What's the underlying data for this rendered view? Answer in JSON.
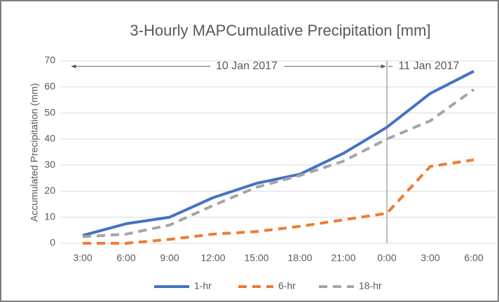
{
  "chart_data": {
    "type": "line",
    "title": "3-Hourly MAPCumulative Precipitation [mm]",
    "y_label": "Accumulated Precipitation (mm)",
    "categories": [
      "3:00",
      "6:00",
      "9:00",
      "12:00",
      "15:00",
      "18:00",
      "21:00",
      "0:00",
      "3:00",
      "6:00"
    ],
    "series": [
      {
        "name": "1-hr",
        "color": "#4472c4",
        "dashed": false,
        "values": [
          3,
          7.5,
          10,
          17.5,
          23,
          26.5,
          34.5,
          44.5,
          57.5,
          66
        ]
      },
      {
        "name": "6-hr",
        "color": "#ed7d31",
        "dashed": true,
        "values": [
          0,
          0,
          1.5,
          3.5,
          4.5,
          6.5,
          9,
          11.5,
          29.5,
          32
        ]
      },
      {
        "name": "18-hr",
        "color": "#a5a5a5",
        "dashed": true,
        "values": [
          2.5,
          3.5,
          7,
          14.5,
          21.5,
          26,
          31.5,
          40,
          47,
          59
        ]
      }
    ],
    "ylim": [
      0,
      70
    ],
    "yticks": [
      0,
      10,
      20,
      30,
      40,
      50,
      60,
      70
    ],
    "grid": true,
    "annotations": [
      "10 Jan 2017",
      "11 Jan 2017"
    ],
    "legend": "bottom"
  }
}
